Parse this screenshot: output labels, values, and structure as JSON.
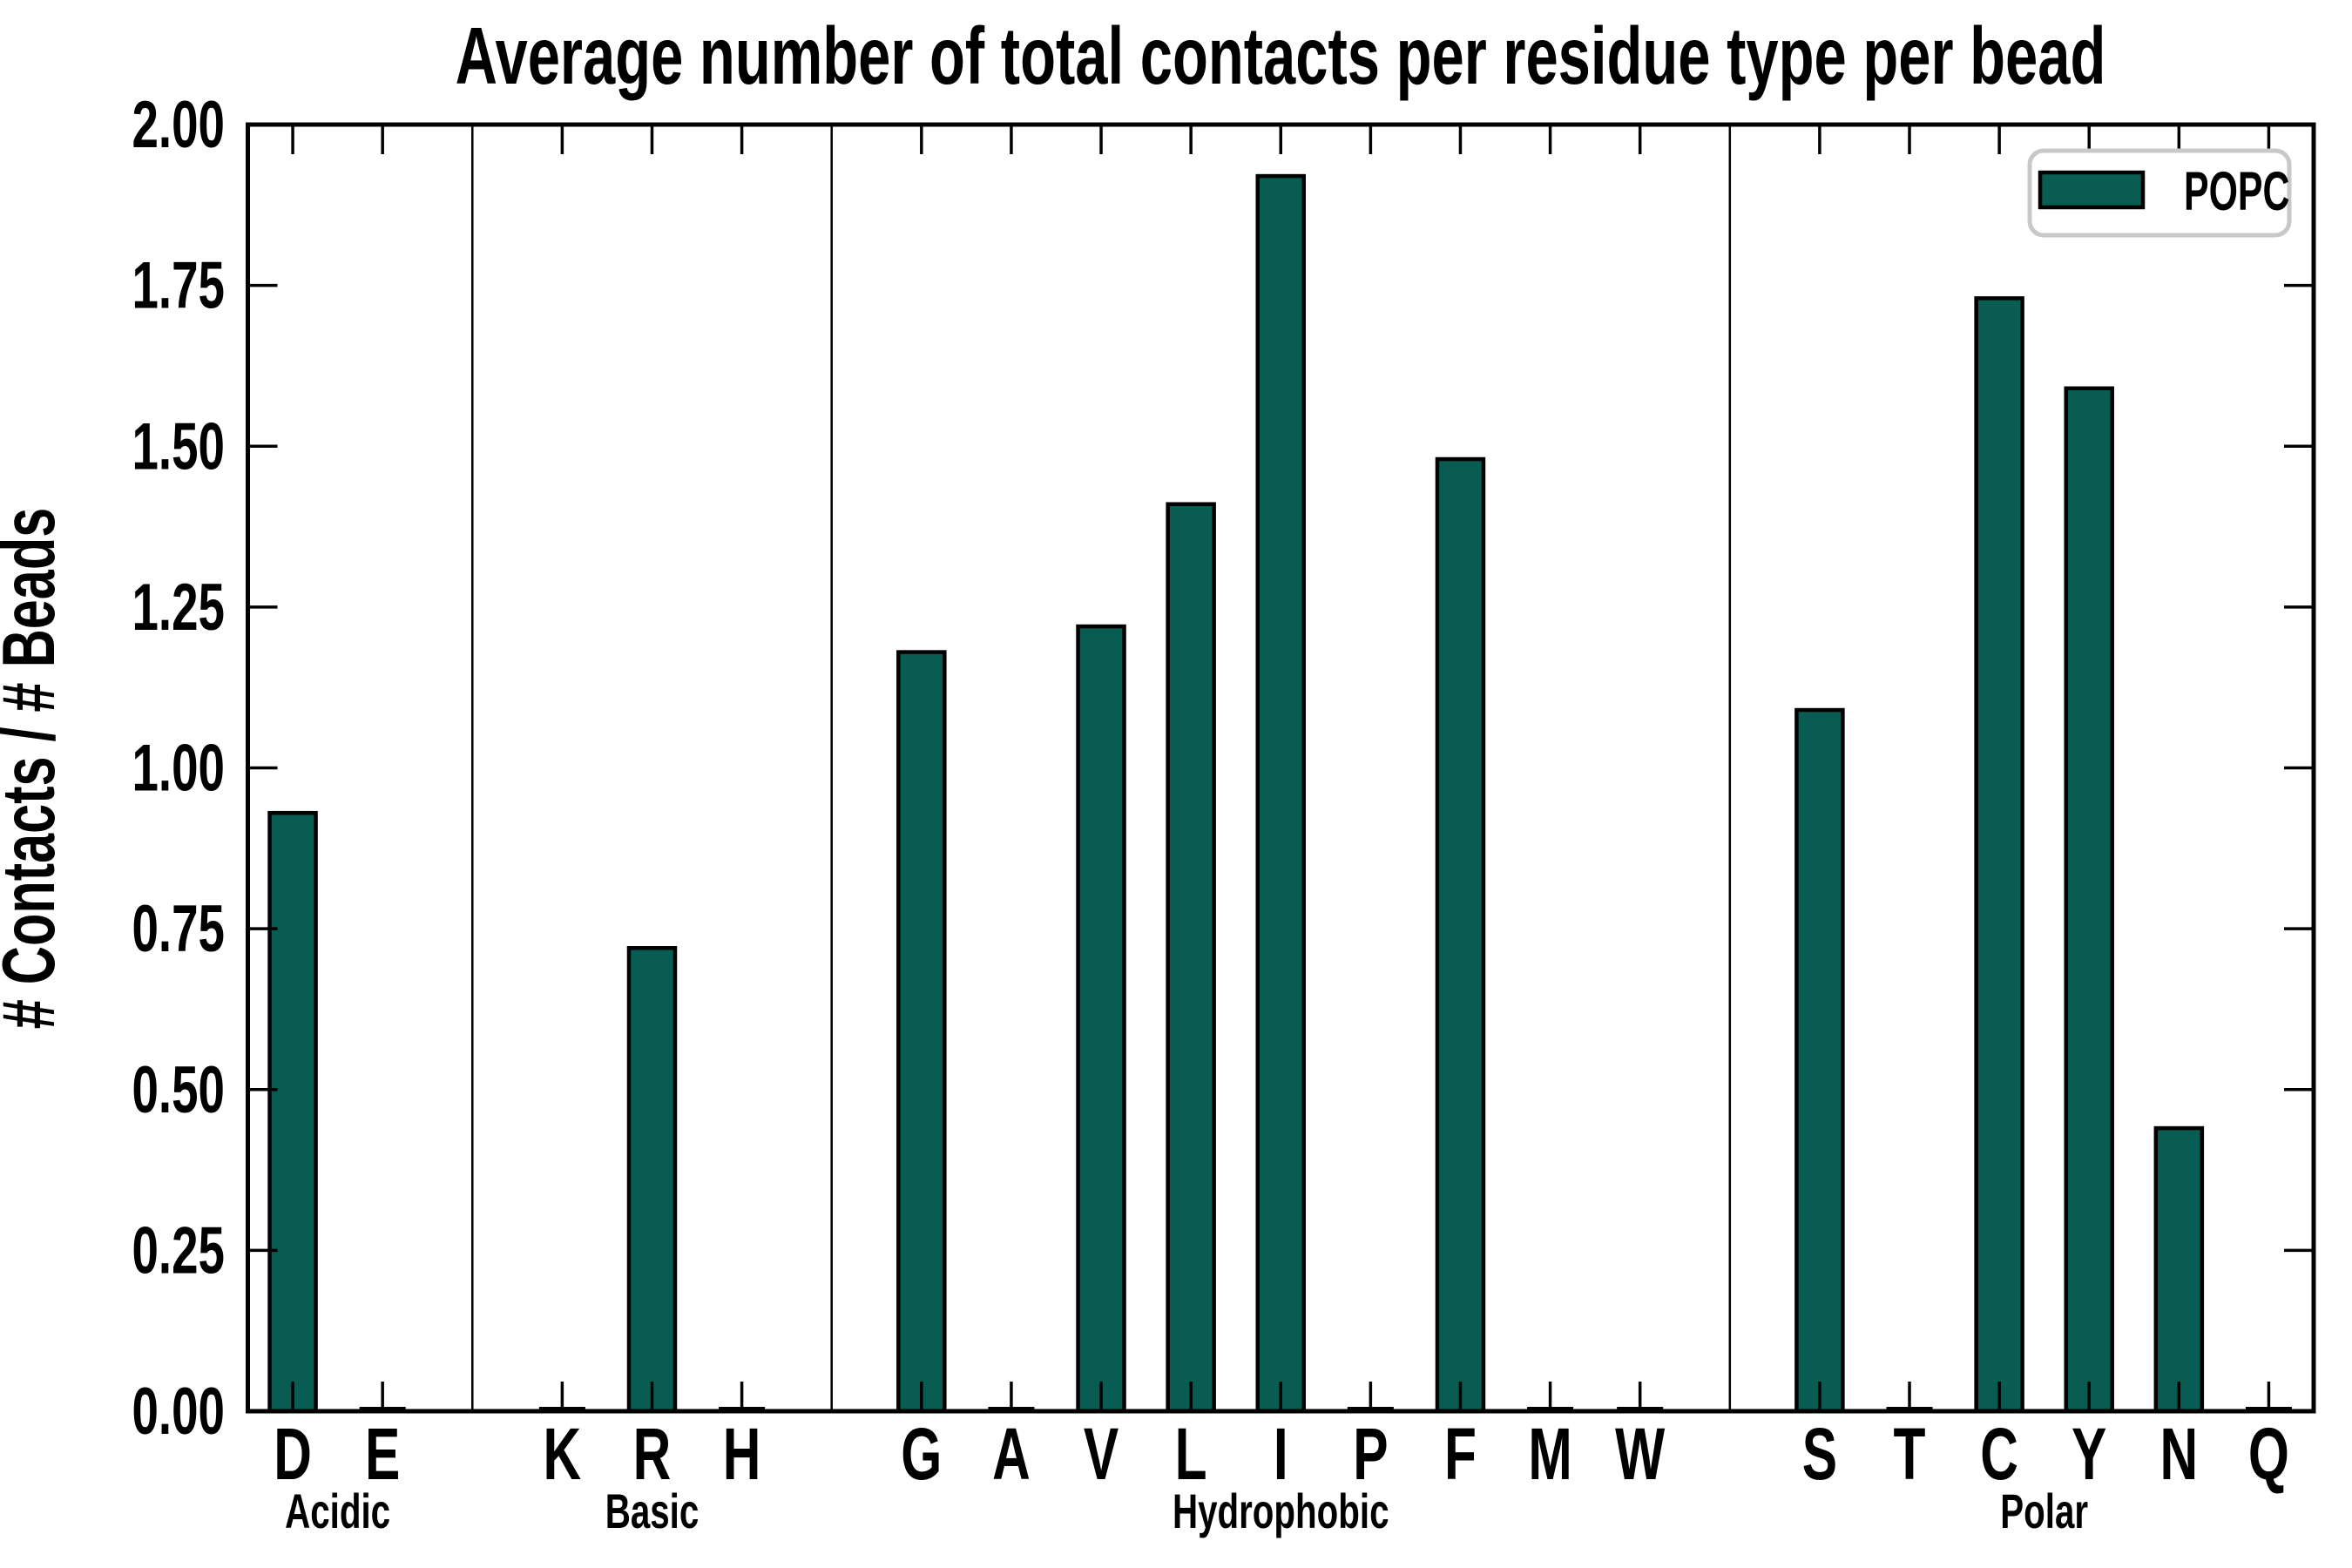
{
  "title": "Average number of total contacts per residue type per bead",
  "ylabel": "# Contacts / # Beads",
  "legend": {
    "label": "POPC"
  },
  "colors": {
    "bar_fill": "#085c51",
    "bar_edge": "#000000",
    "axis": "#000000",
    "text": "#000000",
    "legend_border": "#c8c8c8",
    "background": "#ffffff"
  },
  "chart_data": {
    "type": "bar",
    "title": "Average number of total contacts per residue type per bead",
    "xlabel": "",
    "ylabel": "# Contacts / # Beads",
    "ylim": [
      0.0,
      2.0
    ],
    "ytick_step": 0.25,
    "ytick_labels": [
      "0.00",
      "0.25",
      "0.50",
      "0.75",
      "1.00",
      "1.25",
      "1.50",
      "1.75",
      "2.00"
    ],
    "grid": false,
    "legend_position": "upper right",
    "series_name": "POPC",
    "groups": [
      {
        "name": "Acidic",
        "categories": [
          "D",
          "E"
        ],
        "values": [
          0.93,
          0.0
        ]
      },
      {
        "name": "Basic",
        "categories": [
          "K",
          "R",
          "H"
        ],
        "values": [
          0.0,
          0.72,
          0.0
        ]
      },
      {
        "name": "Hydrophobic",
        "categories": [
          "G",
          "A",
          "V",
          "L",
          "I",
          "P",
          "F",
          "M",
          "W"
        ],
        "values": [
          1.18,
          0.0,
          1.22,
          1.41,
          1.92,
          0.0,
          1.48,
          0.0,
          0.0
        ]
      },
      {
        "name": "Polar",
        "categories": [
          "S",
          "T",
          "C",
          "Y",
          "N",
          "Q"
        ],
        "values": [
          1.09,
          0.0,
          1.73,
          1.59,
          0.44,
          0.0
        ]
      }
    ]
  }
}
